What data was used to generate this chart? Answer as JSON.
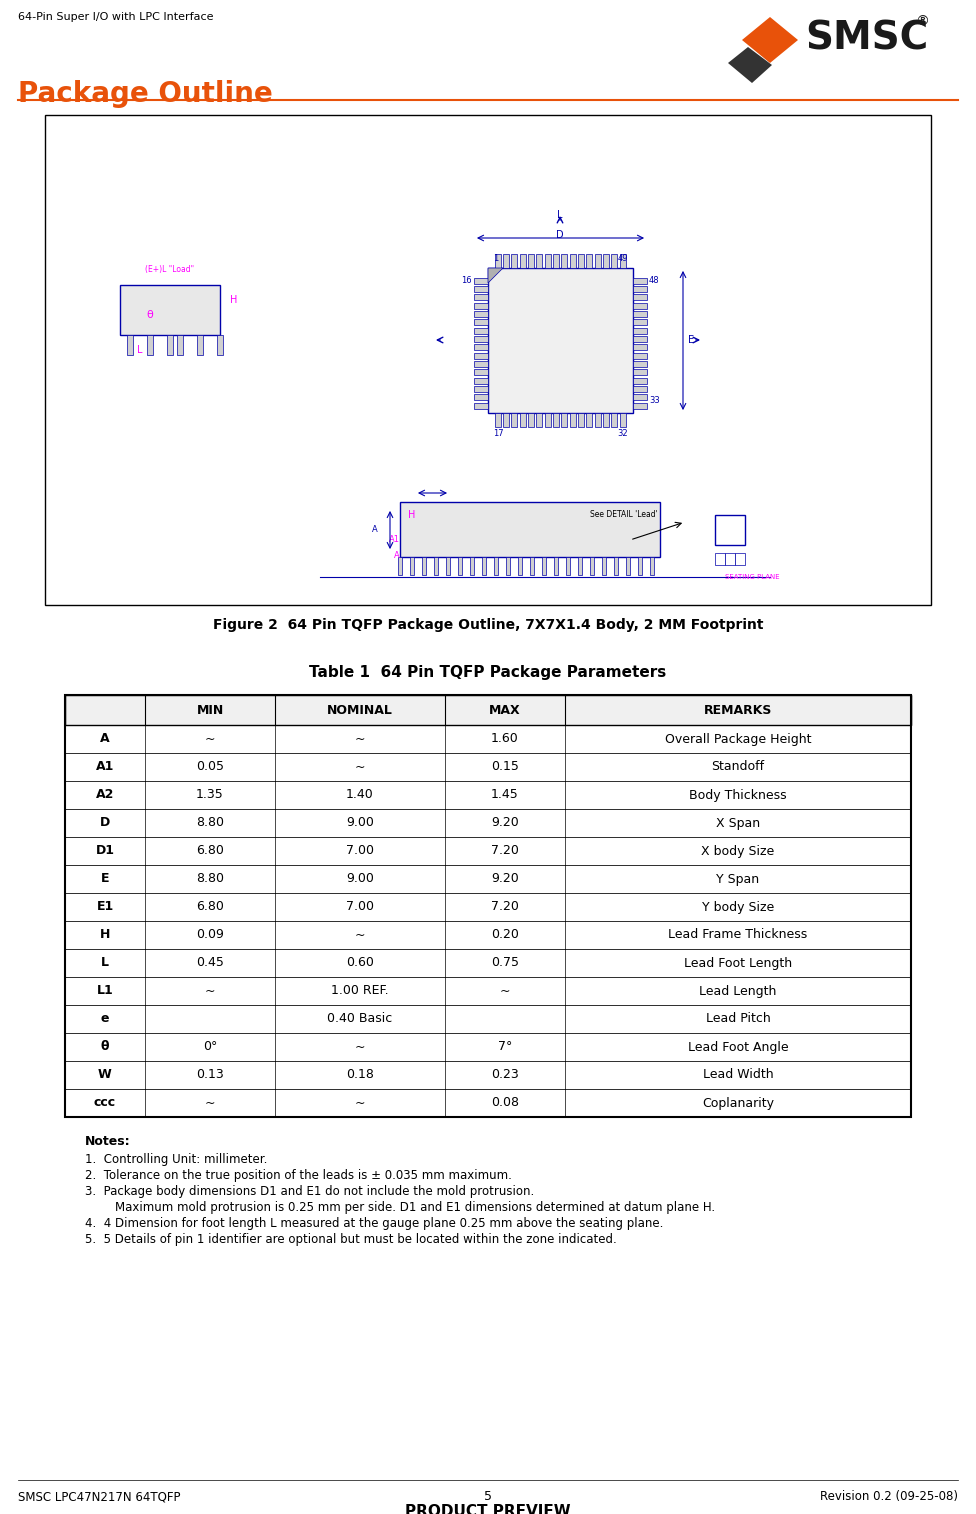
{
  "page_header_left": "64-Pin Super I/O with LPC Interface",
  "section_title": "Package Outline",
  "section_title_color": "#E8520A",
  "figure_caption": "Figure 2  64 Pin TQFP Package Outline, 7X7X1.4 Body, 2 MM Footprint",
  "table_title": "Table 1  64 Pin TQFP Package Parameters",
  "table_headers": [
    "",
    "MIN",
    "NOMINAL",
    "MAX",
    "REMARKS"
  ],
  "table_rows": [
    [
      "A",
      "~",
      "~",
      "1.60",
      "Overall Package Height"
    ],
    [
      "A1",
      "0.05",
      "~",
      "0.15",
      "Standoff"
    ],
    [
      "A2",
      "1.35",
      "1.40",
      "1.45",
      "Body Thickness"
    ],
    [
      "D",
      "8.80",
      "9.00",
      "9.20",
      "X Span"
    ],
    [
      "D1",
      "6.80",
      "7.00",
      "7.20",
      "X body Size"
    ],
    [
      "E",
      "8.80",
      "9.00",
      "9.20",
      "Y Span"
    ],
    [
      "E1",
      "6.80",
      "7.00",
      "7.20",
      "Y body Size"
    ],
    [
      "H",
      "0.09",
      "~",
      "0.20",
      "Lead Frame Thickness"
    ],
    [
      "L",
      "0.45",
      "0.60",
      "0.75",
      "Lead Foot Length"
    ],
    [
      "L1",
      "~",
      "1.00 REF.",
      "~",
      "Lead Length"
    ],
    [
      "e",
      "",
      "0.40 Basic",
      "",
      "Lead Pitch"
    ],
    [
      "θ",
      "0°",
      "~",
      "7°",
      "Lead Foot Angle"
    ],
    [
      "W",
      "0.13",
      "0.18",
      "0.23",
      "Lead Width"
    ],
    [
      "ccc",
      "~",
      "~",
      "0.08",
      "Coplanarity"
    ]
  ],
  "notes_title": "Notes:",
  "notes": [
    "1.  Controlling Unit: millimeter.",
    "2.  Tolerance on the true position of the leads is ± 0.035 mm maximum.",
    "3.  Package body dimensions D1 and E1 do not include the mold protrusion.\n    Maximum mold protrusion is 0.25 mm per side. D1 and E1 dimensions determined at datum plane H.",
    "4.  4 Dimension for foot length L measured at the gauge plane 0.25 mm above the seating plane.",
    "5.  5 Details of pin 1 identifier are optional but must be located within the zone indicated."
  ],
  "footer_left": "SMSC LPC47N217N 64TQFP",
  "footer_center_page": "5",
  "footer_center_text": "PRODUCT PREVIEW",
  "footer_right": "Revision 0.2 (09-25-08)",
  "bg_color": "#ffffff",
  "table_border_color": "#000000",
  "header_bg": "#d0d0d0",
  "smsc_logo_color": "#E8520A",
  "diagram_border_color": "#000000"
}
